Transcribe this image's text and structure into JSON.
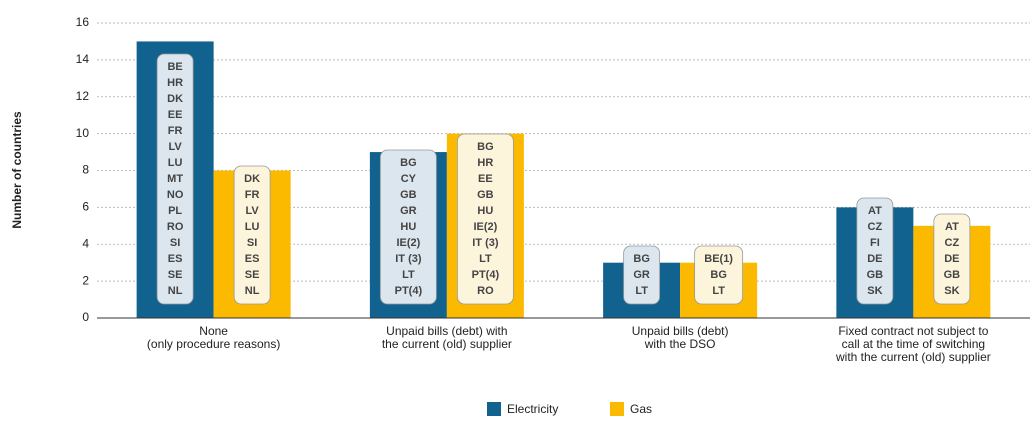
{
  "chart_data": {
    "type": "bar",
    "y_axis_label": "Number of countries",
    "categories": [
      [
        "None",
        "(only procedure reasons)"
      ],
      [
        "Unpaid bills (debt) with",
        "the current (old) supplier"
      ],
      [
        "Unpaid bills (debt)",
        "with the DSO"
      ],
      [
        "Fixed contract not subject to",
        "call at the time of switching",
        "with the current (old) supplier"
      ]
    ],
    "series": [
      {
        "name": "Electricity",
        "color": "#11628f",
        "box_color": "#dbe6ee",
        "values": [
          15,
          9,
          3,
          6
        ],
        "labels": [
          [
            "BE",
            "HR",
            "DK",
            "EE",
            "FR",
            "LV",
            "LU",
            "MT",
            "NO",
            "PL",
            "RO",
            "SI",
            "ES",
            "SE",
            "NL"
          ],
          [
            "BG",
            "CY",
            "GB",
            "GR",
            "HU",
            "IE(2)",
            "IT (3)",
            "LT",
            "PT(4)"
          ],
          [
            "BG",
            "GR",
            "LT"
          ],
          [
            "AT",
            "CZ",
            "FI",
            "DE",
            "GB",
            "SK"
          ]
        ]
      },
      {
        "name": "Gas",
        "color": "#fbb900",
        "box_color": "#fdf4dc",
        "values": [
          8,
          10,
          3,
          5
        ],
        "labels": [
          [
            "DK",
            "FR",
            "LV",
            "LU",
            "SI",
            "ES",
            "SE",
            "NL"
          ],
          [
            "BG",
            "HR",
            "EE",
            "GB",
            "HU",
            "IE(2)",
            "IT (3)",
            "LT",
            "PT(4)",
            "RO"
          ],
          [
            "BE(1)",
            "BG",
            "LT"
          ],
          [
            "AT",
            "CZ",
            "DE",
            "GB",
            "SK"
          ]
        ]
      }
    ],
    "ylim": [
      0,
      16
    ],
    "yticks": [
      0,
      2,
      4,
      6,
      8,
      10,
      12,
      14,
      16
    ],
    "grid": true
  }
}
